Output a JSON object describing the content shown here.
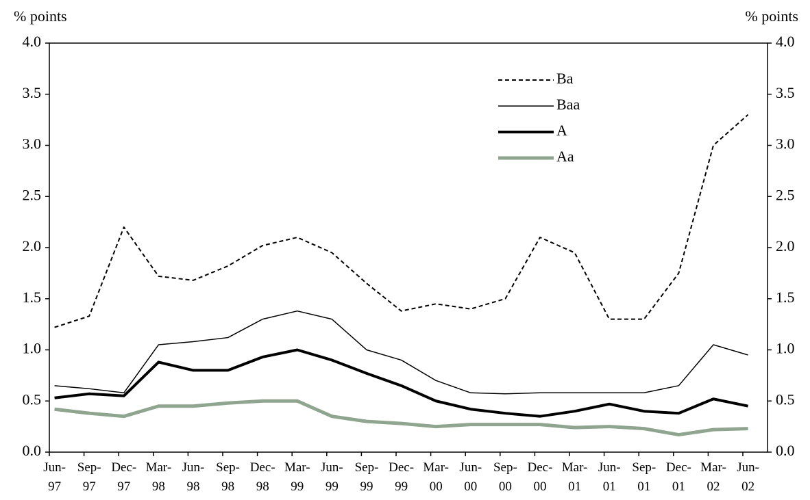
{
  "chart_data": {
    "type": "line",
    "ylabel": "% points",
    "y2label": "% points",
    "categories": [
      "Jun-97",
      "Sep-97",
      "Dec-97",
      "Mar-98",
      "Jun-98",
      "Sep-98",
      "Dec-98",
      "Mar-99",
      "Jun-99",
      "Sep-99",
      "Dec-99",
      "Mar-00",
      "Jun-00",
      "Sep-00",
      "Dec-00",
      "Mar-01",
      "Jun-01",
      "Sep-01",
      "Dec-01",
      "Mar-02",
      "Jun-02"
    ],
    "series": [
      {
        "name": "Ba",
        "color": "#000000",
        "width": 2,
        "dash": "6 4",
        "values": [
          1.22,
          1.33,
          2.2,
          1.72,
          1.68,
          1.82,
          2.02,
          2.1,
          1.95,
          1.65,
          1.38,
          1.45,
          1.4,
          1.5,
          2.1,
          1.95,
          1.3,
          1.3,
          1.75,
          3.0,
          3.3
        ]
      },
      {
        "name": "Baa",
        "color": "#000000",
        "width": 1.5,
        "values": [
          0.65,
          0.62,
          0.58,
          1.05,
          1.08,
          1.12,
          1.3,
          1.38,
          1.3,
          1.0,
          0.9,
          0.7,
          0.58,
          0.57,
          0.58,
          0.58,
          0.58,
          0.58,
          0.65,
          1.05,
          0.95
        ]
      },
      {
        "name": "A",
        "color": "#000000",
        "width": 4,
        "values": [
          0.53,
          0.57,
          0.55,
          0.88,
          0.8,
          0.8,
          0.93,
          1.0,
          0.9,
          0.77,
          0.65,
          0.5,
          0.42,
          0.38,
          0.35,
          0.4,
          0.47,
          0.4,
          0.38,
          0.52,
          0.45
        ]
      },
      {
        "name": "Aa",
        "color": "#8fa58f",
        "width": 5,
        "values": [
          0.42,
          0.38,
          0.35,
          0.45,
          0.45,
          0.48,
          0.5,
          0.5,
          0.35,
          0.3,
          0.28,
          0.25,
          0.27,
          0.27,
          0.27,
          0.24,
          0.25,
          0.23,
          0.17,
          0.22,
          0.23
        ]
      }
    ],
    "ylim": [
      0,
      4
    ],
    "yticks": [
      {
        "value": 0,
        "label": "0.0"
      },
      {
        "value": 0.5,
        "label": "0.5"
      },
      {
        "value": 1,
        "label": "1.0"
      },
      {
        "value": 1.5,
        "label": "1.5"
      },
      {
        "value": 2,
        "label": "2.0"
      },
      {
        "value": 2.5,
        "label": "2.5"
      },
      {
        "value": 3,
        "label": "3.0"
      },
      {
        "value": 3.5,
        "label": "3.5"
      },
      {
        "value": 4,
        "label": "4.0"
      }
    ],
    "y2lim": [
      0,
      4
    ],
    "y2ticks": [
      {
        "value": 0,
        "label": "0.0"
      },
      {
        "value": 0.5,
        "label": "0.5"
      },
      {
        "value": 1,
        "label": "1.0"
      },
      {
        "value": 1.5,
        "label": "1.5"
      },
      {
        "value": 2,
        "label": "2.0"
      },
      {
        "value": 2.5,
        "label": "2.5"
      },
      {
        "value": 3,
        "label": "3.0"
      },
      {
        "value": 3.5,
        "label": "3.5"
      },
      {
        "value": 4,
        "label": "4.0"
      }
    ]
  }
}
